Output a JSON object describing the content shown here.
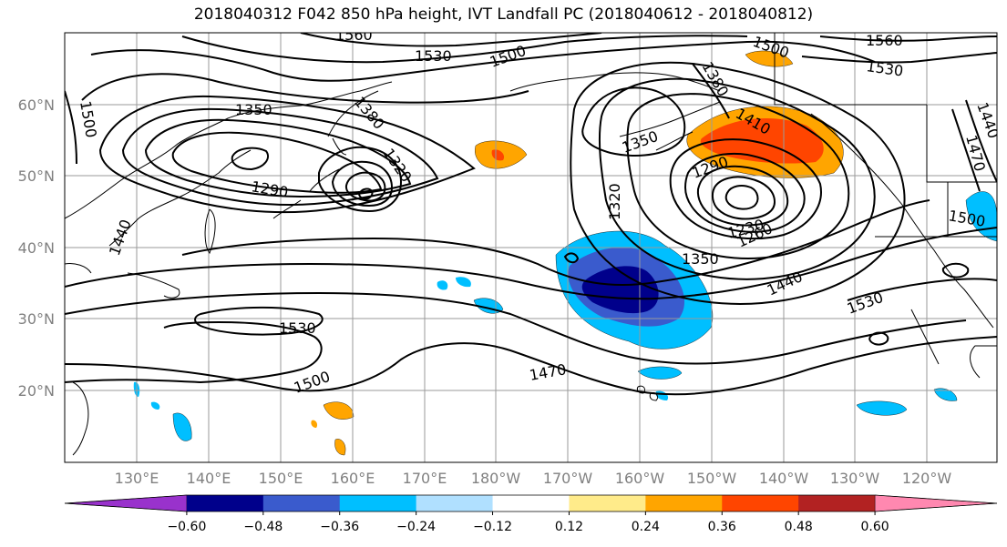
{
  "title": "2018040312 F042 850 hPa height, IVT Landfall PC (2018040612 - 2018040812)",
  "lon_labels": [
    "130°E",
    "140°E",
    "150°E",
    "160°E",
    "170°E",
    "180°W",
    "170°W",
    "160°W",
    "150°W",
    "140°W",
    "130°W",
    "120°W"
  ],
  "lat_labels": [
    "60°N",
    "50°N",
    "40°N",
    "30°N",
    "20°N"
  ],
  "contour_labels": [
    "1500",
    "1350",
    "1320",
    "1290",
    "1560",
    "1530",
    "1500",
    "1500",
    "1350",
    "1290",
    "1320",
    "1230",
    "1260",
    "1350",
    "1440",
    "1530",
    "1530",
    "1500",
    "1470",
    "1440",
    "1470",
    "1500",
    "1440",
    "1560",
    "1530",
    "1410",
    "1380",
    "1380"
  ],
  "colorbar": {
    "tick_labels": [
      "−0.60",
      "−0.48",
      "−0.36",
      "−0.24",
      "−0.12",
      "0.12",
      "0.24",
      "0.36",
      "0.48",
      "0.60"
    ],
    "colors": [
      "#9932cc",
      "#00008b",
      "#3a5bcd",
      "#00bfff",
      "#b0e0ff",
      "#ffffff",
      "#ffeb8a",
      "#ffa500",
      "#ff4500",
      "#b22222",
      "#ff88b0"
    ]
  },
  "colors": {
    "neg_strong": "#00008b",
    "neg_mid": "#3a5bcd",
    "neg_light": "#00bfff",
    "pos_light": "#ffa500",
    "pos_strong": "#ff4500"
  }
}
